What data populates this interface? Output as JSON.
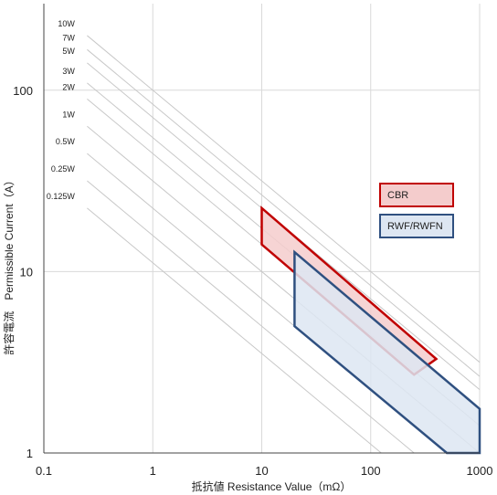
{
  "chart_data": {
    "type": "area",
    "xscale": "log",
    "yscale": "log",
    "xlim": [
      0.1,
      1000
    ],
    "ylim": [
      1,
      300
    ],
    "xticks": [
      "0.1",
      "1",
      "10",
      "100",
      "1000"
    ],
    "yticks": [
      "1",
      "10",
      "100"
    ],
    "xlabel": "抵抗値 Resistance Value（mΩ）",
    "ylabel": "許容電流　Permissible Current（A）",
    "grid": true,
    "power_lines": [
      {
        "label": "10W",
        "watts": 10
      },
      {
        "label": "7W",
        "watts": 7
      },
      {
        "label": "5W",
        "watts": 5
      },
      {
        "label": "3W",
        "watts": 3
      },
      {
        "label": "2W",
        "watts": 2
      },
      {
        "label": "1W",
        "watts": 1
      },
      {
        "label": "0.5W",
        "watts": 0.5
      },
      {
        "label": "0.25W",
        "watts": 0.25
      },
      {
        "label": "0.125W",
        "watts": 0.125
      }
    ],
    "series": [
      {
        "name": "CBR",
        "color": "#c00000",
        "fill": "#f4cccc",
        "polygon": [
          [
            10,
            22.4
          ],
          [
            10,
            14.1
          ],
          [
            250,
            2.7
          ],
          [
            400,
            3.3
          ]
        ]
      },
      {
        "name": "RWF/RWFN",
        "color": "#2f5080",
        "fill": "#dde6f2",
        "polygon": [
          [
            20,
            12.8
          ],
          [
            20,
            5.0
          ],
          [
            500,
            1.0
          ],
          [
            1000,
            1.0
          ],
          [
            1000,
            1.75
          ]
        ]
      }
    ],
    "legend_position": "right"
  }
}
